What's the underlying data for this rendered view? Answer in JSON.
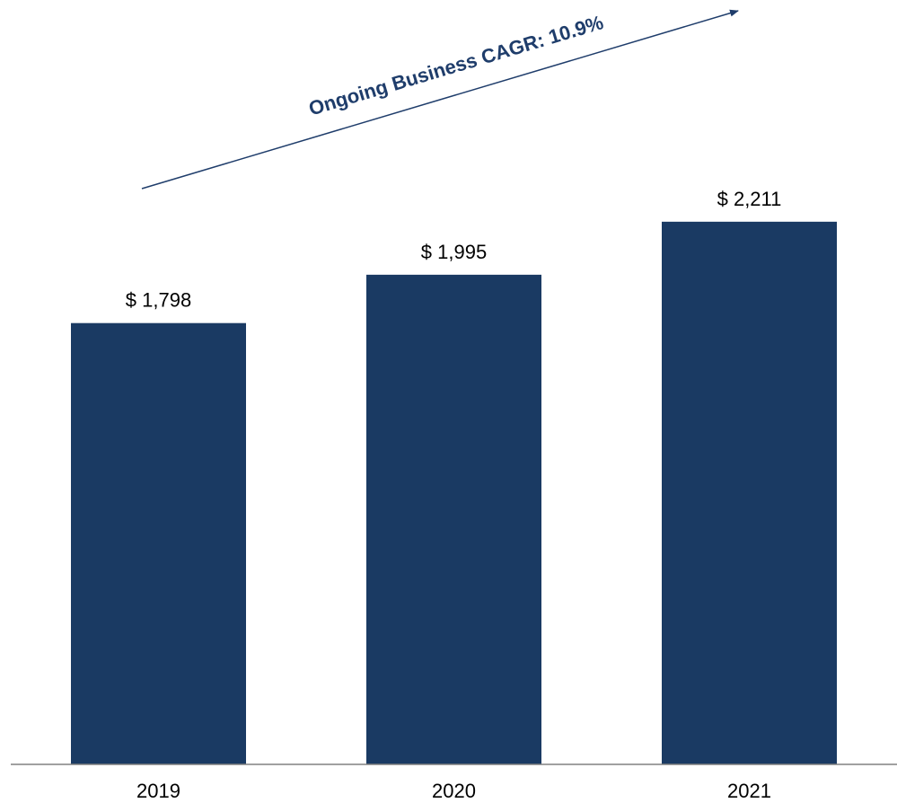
{
  "chart_data": {
    "type": "bar",
    "categories": [
      "2019",
      "2020",
      "2021"
    ],
    "values": [
      1798,
      1995,
      2211
    ],
    "value_labels": [
      "$ 1,798",
      "$ 1,995",
      "$ 2,211"
    ],
    "ylim": [
      0,
      2500
    ],
    "grid": false,
    "legend": "none",
    "annotation": {
      "text": "Ongoing Business CAGR: 10.9%"
    }
  },
  "colors": {
    "bar": "#1a3a63",
    "annotation": "#1f3d6b",
    "axis": "#808080"
  }
}
